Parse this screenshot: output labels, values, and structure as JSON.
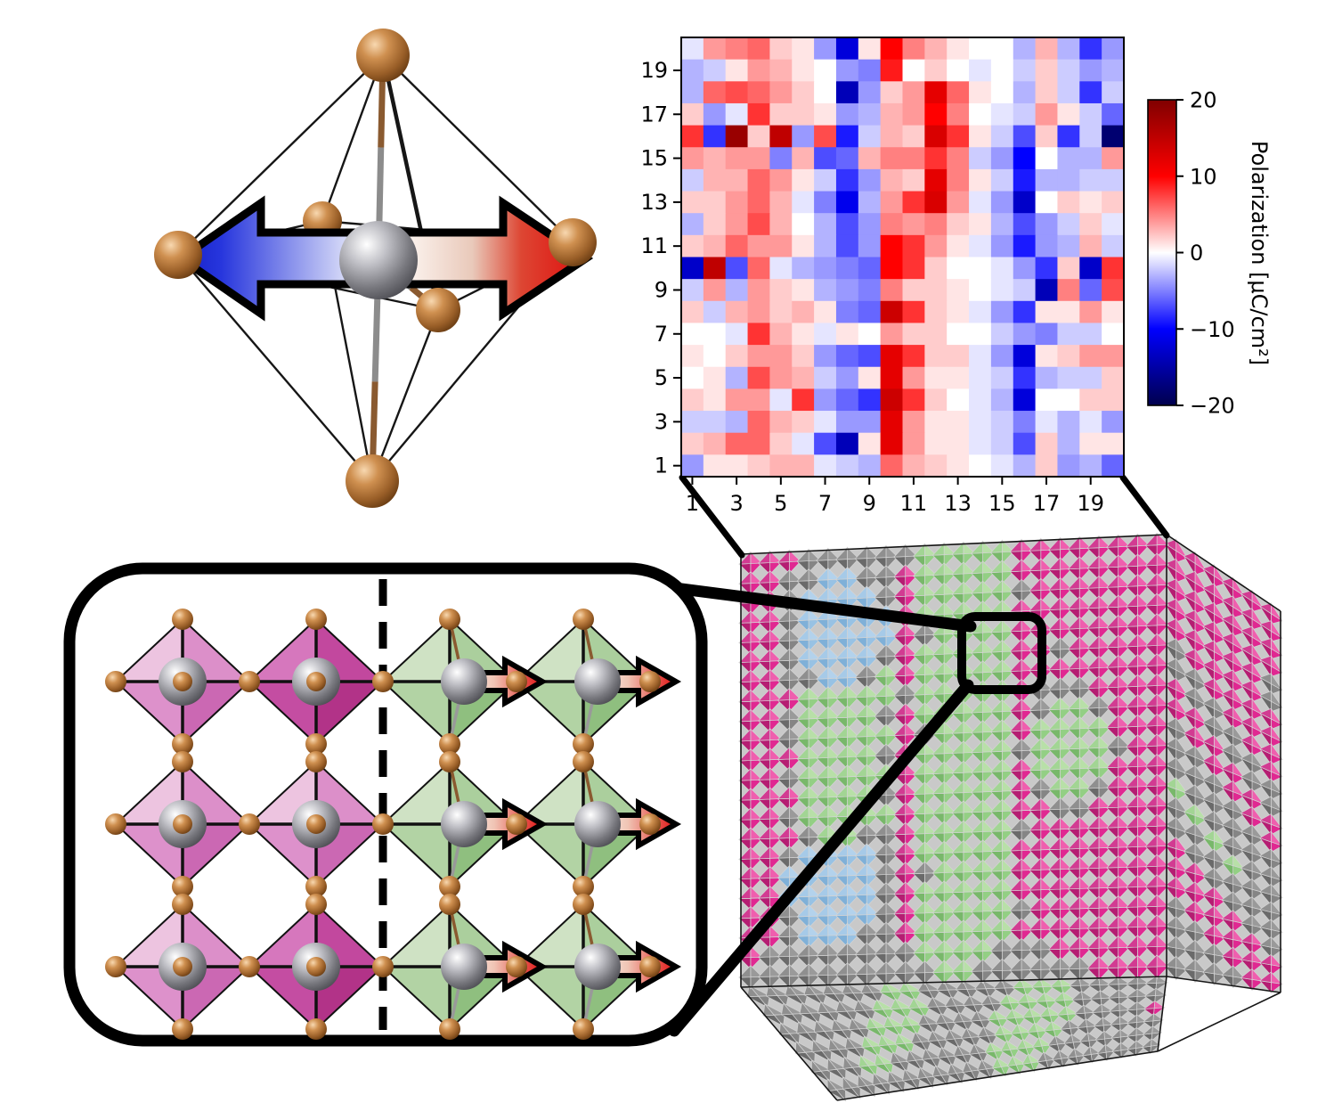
{
  "figure": {
    "background": "#ffffff"
  },
  "chart_data": {
    "type": "heatmap",
    "title": "",
    "xlabel": "",
    "ylabel": "",
    "colormap": "seismic",
    "vmin": -20,
    "vmax": 20,
    "colorbar_label": "Polarization [μC/cm²]",
    "x_labels": [
      1,
      2,
      3,
      4,
      5,
      6,
      7,
      8,
      9,
      10,
      11,
      12,
      13,
      14,
      15,
      16,
      17,
      18,
      19,
      20
    ],
    "y_labels": [
      1,
      2,
      3,
      4,
      5,
      6,
      7,
      8,
      9,
      10,
      11,
      12,
      13,
      14,
      15,
      16,
      17,
      18,
      19,
      20
    ],
    "x_ticks_shown": [
      "1",
      "3",
      "5",
      "7",
      "9",
      "11",
      "13",
      "15",
      "17",
      "19"
    ],
    "y_ticks_shown": [
      "19",
      "17",
      "15",
      "13",
      "11",
      "9",
      "7",
      "5",
      "3",
      "1"
    ],
    "rows_order": "top_to_bottom (row 20 first, row 1 last)",
    "values": [
      [
        -1,
        4,
        5,
        6,
        2,
        1,
        -4,
        -12,
        1,
        10,
        5,
        3,
        1,
        0,
        0,
        -3,
        3,
        -3,
        -8,
        -4
      ],
      [
        -3,
        -2,
        1,
        4,
        3,
        1,
        0,
        -4,
        -5,
        9,
        0,
        2,
        0,
        -1,
        0,
        -2,
        2,
        -2,
        -4,
        -3
      ],
      [
        -3,
        6,
        7,
        6,
        4,
        2,
        0,
        -14,
        -4,
        2,
        4,
        12,
        6,
        1,
        0,
        -3,
        2,
        -2,
        -8,
        -2
      ],
      [
        2,
        -4,
        -1,
        8,
        2,
        2,
        1,
        -4,
        -3,
        3,
        4,
        10,
        5,
        0,
        -1,
        -2,
        4,
        1,
        -2,
        -6
      ],
      [
        8,
        -8,
        18,
        2,
        15,
        -4,
        7,
        -9,
        -2,
        3,
        2,
        13,
        8,
        1,
        -2,
        -7,
        2,
        -8,
        -2,
        -18
      ],
      [
        4,
        3,
        4,
        4,
        -5,
        3,
        -7,
        -6,
        3,
        5,
        5,
        8,
        5,
        -2,
        -4,
        -10,
        0,
        -3,
        -3,
        4
      ],
      [
        -2,
        3,
        3,
        6,
        4,
        1,
        -2,
        -8,
        -4,
        3,
        2,
        12,
        5,
        1,
        -2,
        -9,
        -3,
        -3,
        -2,
        -2
      ],
      [
        2,
        2,
        4,
        6,
        3,
        -1,
        -5,
        -11,
        -3,
        4,
        8,
        13,
        4,
        -1,
        -4,
        -13,
        0,
        2,
        1,
        2
      ],
      [
        -3,
        2,
        4,
        7,
        3,
        0,
        -3,
        -7,
        -4,
        5,
        4,
        5,
        2,
        1,
        -3,
        -7,
        -4,
        -2,
        2,
        -1
      ],
      [
        2,
        3,
        6,
        4,
        4,
        1,
        -3,
        -7,
        -4,
        10,
        8,
        4,
        1,
        -1,
        -4,
        -9,
        -4,
        -3,
        3,
        -2
      ],
      [
        -13,
        15,
        -7,
        6,
        -1,
        -3,
        -4,
        -5,
        -6,
        10,
        8,
        2,
        0,
        0,
        -1,
        -4,
        -8,
        2,
        -13,
        8
      ],
      [
        -2,
        4,
        -3,
        4,
        2,
        1,
        -3,
        -4,
        -5,
        5,
        2,
        2,
        1,
        0,
        -1,
        -2,
        -14,
        5,
        -6,
        7
      ],
      [
        2,
        -2,
        3,
        4,
        2,
        3,
        1,
        -5,
        -6,
        14,
        8,
        2,
        1,
        -1,
        -4,
        -8,
        1,
        1,
        4,
        1
      ],
      [
        0,
        0,
        -1,
        8,
        3,
        1,
        -1,
        1,
        0,
        4,
        2,
        2,
        0,
        0,
        -2,
        -4,
        -5,
        -2,
        -2,
        0
      ],
      [
        1,
        0,
        2,
        4,
        4,
        2,
        -4,
        -6,
        -7,
        12,
        8,
        2,
        2,
        -1,
        -4,
        -12,
        1,
        2,
        4,
        4
      ],
      [
        0,
        1,
        -3,
        7,
        4,
        3,
        -2,
        -4,
        1,
        12,
        4,
        1,
        1,
        -1,
        -2,
        -8,
        -3,
        -2,
        -2,
        2
      ],
      [
        2,
        1,
        4,
        4,
        -1,
        8,
        -4,
        -6,
        -8,
        14,
        8,
        2,
        0,
        -1,
        -3,
        -12,
        0,
        0,
        2,
        2
      ],
      [
        -2,
        -2,
        -3,
        6,
        3,
        2,
        -1,
        -4,
        -4,
        12,
        4,
        1,
        1,
        -1,
        -2,
        -5,
        -1,
        -3,
        -1,
        -4
      ],
      [
        2,
        3,
        6,
        6,
        2,
        -1,
        -7,
        -14,
        1,
        12,
        4,
        1,
        1,
        -1,
        -2,
        -7,
        2,
        -3,
        1,
        1
      ],
      [
        -4,
        1,
        1,
        2,
        3,
        3,
        -1,
        -2,
        -3,
        6,
        3,
        2,
        1,
        0,
        -1,
        -3,
        2,
        -4,
        -3,
        -6
      ]
    ]
  },
  "colorbar": {
    "label": "Polarization [μC/cm²]",
    "tick_labels": [
      "20",
      "10",
      "0",
      "−10",
      "−20"
    ],
    "tick_values": [
      20,
      10,
      0,
      -10,
      -20
    ],
    "min": -20,
    "max": 20,
    "colormap": "seismic"
  },
  "octahedron": {
    "vertex_atom_color": "#a5642f",
    "center_atom_color": "#8d8d92",
    "arrow_left_color": "#1822cf",
    "arrow_right_color": "#e00d0d",
    "arrow_outline_color": "#000000",
    "arrow_gradient": [
      [
        0,
        "#1620c8"
      ],
      [
        0.1,
        "#2736dd"
      ],
      [
        0.45,
        "#eef0fb"
      ],
      [
        0.55,
        "#fdf6f2"
      ],
      [
        0.72,
        "#e9c9ba"
      ],
      [
        0.84,
        "#dd4633"
      ],
      [
        1,
        "#e00d0d"
      ]
    ]
  },
  "lattice": {
    "rows": 3,
    "columns": 4,
    "left_domain_columns": 2,
    "right_domain_columns": 2,
    "left_domain_color": "#d984c6",
    "right_domain_color": "#aecf9f",
    "separator_style": "dashed",
    "displacement_arrow_color": "#e01010",
    "vertex_atom_color": "#a5642f",
    "center_atom_color": "#8d8d92",
    "pink_light_faces": [
      "#edc4e0",
      "#dc8fc9",
      "#dd91cb",
      "#cb68b3"
    ],
    "pink_dark_faces": [
      "#d677bd",
      "#c2489e",
      "#c44da2",
      "#b23388"
    ],
    "green_faces": [
      "#cfe2c4",
      "#abcf9d",
      "#b2d3a4",
      "#8fbf7f"
    ]
  },
  "cube": {
    "domain_colors": {
      "M": "#e02891",
      "G": "#93cf84",
      "Y": "#858585",
      "B": "#98c2e4"
    },
    "gap_color": "#c9c9c9",
    "magenta_shades": [
      "#ef5fae",
      "#e02891",
      "#b51d72",
      "#d23b92"
    ],
    "green_shades": [
      "#b8e0a8",
      "#93cf84",
      "#78b86a",
      "#a2d594"
    ],
    "gray_shades": [
      "#9a9a9a",
      "#858585",
      "#6a6a6a",
      "#8f8f8f"
    ],
    "blue_shades": [
      "#b3d2ec",
      "#98c2e4",
      "#7fb0d8",
      "#a6cae8"
    ],
    "front_map": [
      "MMMYYYYYYGGGGGMMMMMMMM",
      "MMYYBBYYMGGGGGMMMMMMMM",
      "MMYBBBBYMGGGGGYMMMMMMM",
      "MMYBBBBBMGGGGGMMMMMMMM",
      "MMYBBBBBMYGGGGMMMMMMMM",
      "MMYBBBBYMGGGGGMMYMMMMM",
      "MMYYBBYGMGGGGGMMMMMMMM",
      "MMMGGGGGYGGGGGMYYYMMMM",
      "MMYGGGGYMGGGGGMYGGYMMM",
      "MMYGGGGGMYGGGGMGGGGMMM",
      "MMMGGGGYMGGGGGYGGGGYMM",
      "MMYGGGGGMGGGGGMGGGGMMM",
      "MMMGGGGYMGGGGGMYGGYMMM",
      "MMYGGGGGMGGGGGMMYYMMMM",
      "MMMYGGYYMGGGGGYMMMMMMM",
      "MMYBBBBYMGGGGGMMMMMMMM",
      "MMBBBBBYMYGGGGMMMMMMMM",
      "MMBBBBBYMGGGGGMMMMMMMM",
      "MMYBBBBYMGGGGGYMMMMMMM",
      "MMYBBBYYMGGGGGMMMMMMMM",
      "MYYYYYYYYGGGGYYYMMMMMM",
      "YYYYYYYYYYGGYYYYYYMMMM"
    ],
    "right_map": [
      "MMMMMM",
      "MMMMMM",
      "MMMMMM",
      "MMMMMM",
      "MMMMMY",
      "YMMMMY",
      "YYMMMM",
      "MYYMMM",
      "MMYYMM",
      "YMMYYM",
      "YYMMYY",
      "YYYMMY",
      "GYYYMM",
      "YGYYYM",
      "YYGYYY",
      "MYYGYY",
      "MMYYYY",
      "MMMYYY",
      "YMMMYY",
      "YYMMMY",
      "YYYMMM",
      "YYYYMM"
    ],
    "bottom_map": [
      "YYYYYYYGGYYYYYGGGYYYYY",
      "YYYYYYGGGYYYYGGGGYYYYY",
      "YYYYYGGGYYYYGGGGGYYYYM",
      "YYYYGGGYYYYYGGGGYYYYYY",
      "YYYGGYYYYYYGGGGYYYYYYY",
      "YYYYYYYYYYYGGGYYYYYYYY"
    ]
  },
  "palette": {
    "atom_brown_gradient": [
      "#f8d8b0",
      "#cf9050",
      "#9a5f28",
      "#5f350e"
    ],
    "atom_gray_gradient": [
      "#ffffff",
      "#c0c0c6",
      "#77777d",
      "#45454b"
    ],
    "wireframe_color": "#161616",
    "connector_color": "#000000"
  }
}
